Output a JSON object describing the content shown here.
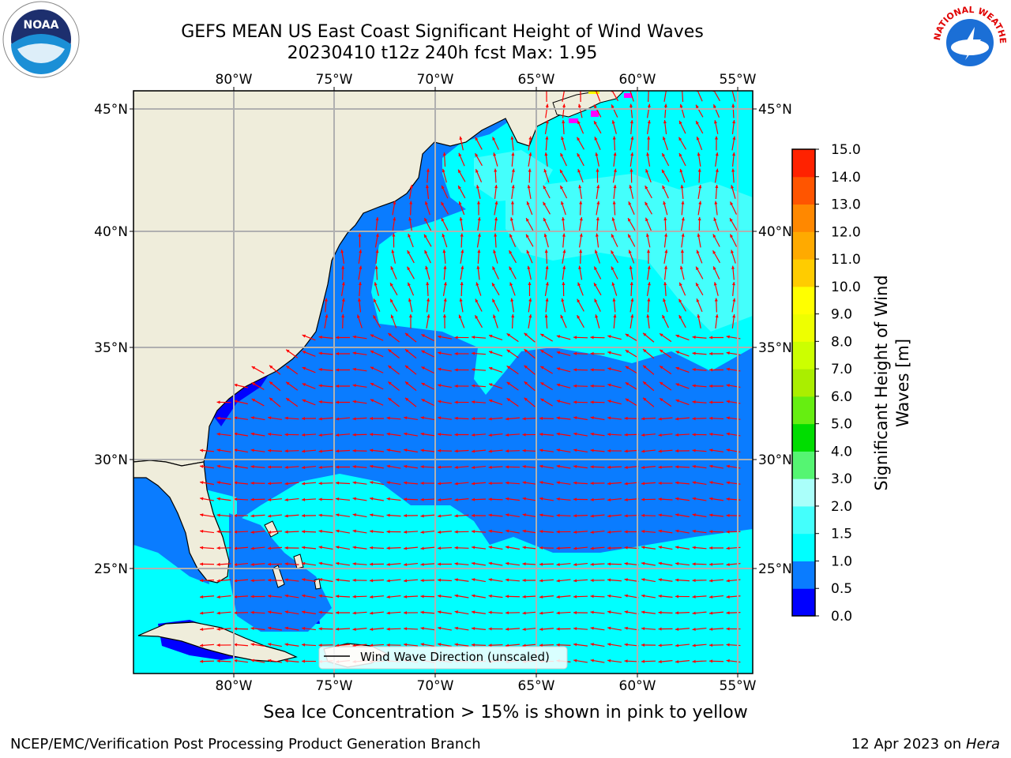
{
  "title": {
    "line1": "GEFS MEAN US East Coast Significant Height of Wind Waves",
    "line2": "20230410 t12z 240h fcst   Max: 1.95"
  },
  "map": {
    "lon_labels": [
      "80°W",
      "75°W",
      "70°W",
      "65°W",
      "60°W",
      "55°W"
    ],
    "lat_labels": [
      "45°N",
      "40°N",
      "35°N",
      "30°N",
      "25°N"
    ],
    "legend_label": "Wind Wave Direction (unscaled)",
    "colors": {
      "land": "#efeddb",
      "blue": "#0000ff",
      "mid_blue": "#0a7cff",
      "cyan": "#00ffff",
      "light_cyan": "#44fffc",
      "arrow": "#ff0000",
      "ice": "#ff00ff"
    }
  },
  "colorbar": {
    "label_line1": "Significant Height of Wind",
    "label_line2": "Waves [m]",
    "ticks": [
      "0.0",
      "0.5",
      "1.0",
      "1.5",
      "2.0",
      "3.0",
      "4.0",
      "5.0",
      "6.0",
      "7.0",
      "8.0",
      "9.0",
      "10.0",
      "11.0",
      "12.0",
      "13.0",
      "14.0",
      "15.0"
    ],
    "colors": [
      "#0000ff",
      "#0a7cff",
      "#00ffff",
      "#44fffc",
      "#aafffa",
      "#55f572",
      "#00dd00",
      "#66ee11",
      "#aaee00",
      "#ccff00",
      "#eeff00",
      "#ffff00",
      "#ffcc00",
      "#ffaa00",
      "#ff8800",
      "#ff5500",
      "#ff2200"
    ]
  },
  "caption": "Sea Ice Concentration > 15% is shown in pink to yellow",
  "footer": {
    "left": "NCEP/EMC/Verification Post Processing Product Generation Branch",
    "date": "12 Apr 2023 on ",
    "host": "Hera"
  },
  "logos": {
    "noaa_text": "NOAA",
    "nws_text": "NATIONAL WEATHER SERVICE"
  }
}
